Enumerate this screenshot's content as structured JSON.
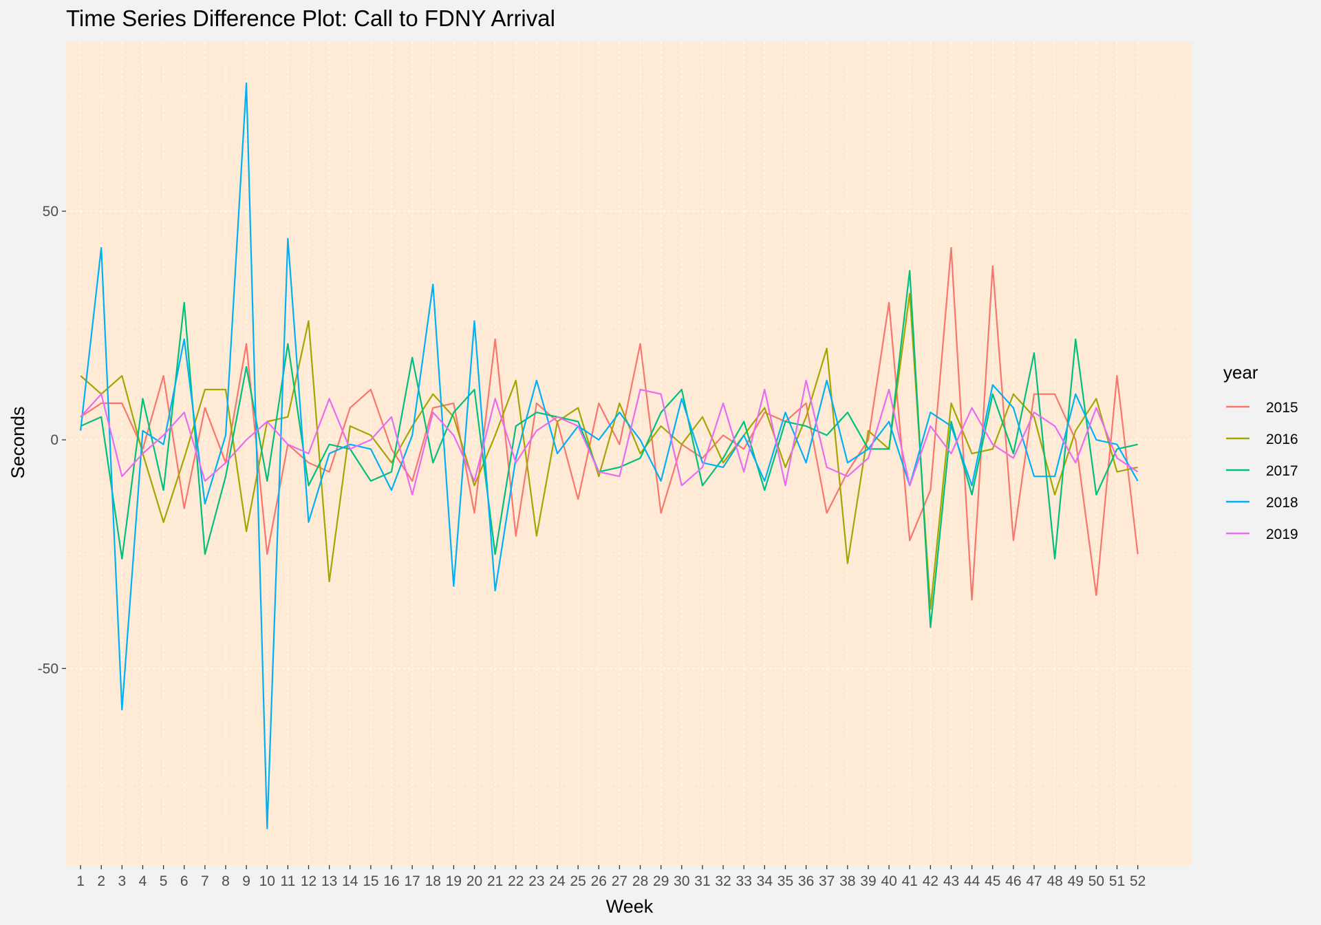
{
  "chart_data": {
    "type": "line",
    "title": "Time Series Difference Plot: Call to FDNY Arrival",
    "xlabel": "Week",
    "ylabel": "Seconds",
    "x": [
      1,
      2,
      3,
      4,
      5,
      6,
      7,
      8,
      9,
      10,
      11,
      12,
      13,
      14,
      15,
      16,
      17,
      18,
      19,
      20,
      21,
      22,
      23,
      24,
      25,
      26,
      27,
      28,
      29,
      30,
      31,
      32,
      33,
      34,
      35,
      36,
      37,
      38,
      39,
      40,
      41,
      42,
      43,
      44,
      45,
      46,
      47,
      48,
      49,
      50,
      51,
      52
    ],
    "x_tick_labels": [
      "1",
      "2",
      "3",
      "4",
      "5",
      "6",
      "7",
      "8",
      "9",
      "10",
      "11",
      "12",
      "13",
      "14",
      "15",
      "16",
      "17",
      "18",
      "19",
      "20",
      "21",
      "22",
      "23",
      "24",
      "25",
      "26",
      "27",
      "28",
      "29",
      "30",
      "31",
      "32",
      "33",
      "34",
      "35",
      "36",
      "37",
      "38",
      "39",
      "40",
      "41",
      "42",
      "43",
      "44",
      "45",
      "46",
      "47",
      "48",
      "49",
      "50",
      "51",
      "52"
    ],
    "ylim": [
      -93,
      87
    ],
    "y_ticks": [
      -50,
      0,
      50
    ],
    "y_tick_labels": [
      "-50",
      "0",
      "50"
    ],
    "grid": true,
    "panel_background": "#ffebd5",
    "background": "#f2f2f2",
    "legend": {
      "title": "year",
      "position": "right"
    },
    "series": [
      {
        "name": "2015",
        "color": "#F8766D",
        "values": [
          5,
          8,
          8,
          -2,
          14,
          -15,
          7,
          -5,
          21,
          -25,
          -1,
          -5,
          -7,
          7,
          11,
          -2,
          -9,
          7,
          8,
          -16,
          22,
          -21,
          8,
          4,
          -13,
          8,
          -1,
          21,
          -16,
          -1,
          -4,
          1,
          -2,
          6,
          4,
          8,
          -16,
          -7,
          0,
          30,
          -22,
          -11,
          42,
          -35,
          38,
          -22,
          10,
          10,
          0,
          -34,
          14,
          -25
        ]
      },
      {
        "name": "2016",
        "color": "#A3A500",
        "values": [
          14,
          10,
          14,
          -3,
          -18,
          -4,
          11,
          11,
          -20,
          4,
          5,
          26,
          -31,
          3,
          1,
          -5,
          3,
          10,
          5,
          -10,
          1,
          13,
          -21,
          4,
          7,
          -8,
          8,
          -3,
          3,
          -1,
          5,
          -5,
          1,
          7,
          -6,
          5,
          20,
          -27,
          2,
          -2,
          32,
          -37,
          8,
          -3,
          -2,
          10,
          5,
          -12,
          2,
          9,
          -7,
          -6
        ]
      },
      {
        "name": "2017",
        "color": "#00BF7D",
        "values": [
          3,
          5,
          -26,
          9,
          -11,
          30,
          -25,
          -8,
          16,
          -9,
          21,
          -10,
          -1,
          -2,
          -9,
          -7,
          18,
          -5,
          6,
          11,
          -25,
          3,
          6,
          5,
          4,
          -7,
          -6,
          -4,
          6,
          11,
          -10,
          -4,
          4,
          -11,
          4,
          3,
          1,
          6,
          -2,
          -2,
          37,
          -41,
          4,
          -12,
          10,
          -3,
          19,
          -26,
          22,
          -12,
          -2,
          -1
        ]
      },
      {
        "name": "2018",
        "color": "#00B0F6",
        "values": [
          2,
          42,
          -59,
          2,
          -1,
          22,
          -14,
          1,
          78,
          -85,
          44,
          -18,
          -3,
          -1,
          -2,
          -11,
          1,
          34,
          -32,
          26,
          -33,
          -4,
          13,
          -3,
          3,
          0,
          6,
          0,
          -9,
          9,
          -5,
          -6,
          1,
          -9,
          6,
          -5,
          13,
          -5,
          -2,
          4,
          -10,
          6,
          3,
          -10,
          12,
          7,
          -8,
          -8,
          10,
          0,
          -1,
          -9
        ]
      },
      {
        "name": "2019",
        "color": "#E76BF3",
        "values": [
          5,
          10,
          -8,
          -3,
          1,
          6,
          -9,
          -5,
          0,
          4,
          -1,
          -3,
          9,
          -2,
          0,
          5,
          -12,
          6,
          1,
          -9,
          9,
          -5,
          2,
          5,
          3,
          -7,
          -8,
          11,
          10,
          -10,
          -6,
          8,
          -7,
          11,
          -10,
          13,
          -6,
          -8,
          -4,
          11,
          -10,
          3,
          -3,
          7,
          -1,
          -4,
          6,
          3,
          -5,
          7,
          -4,
          -7
        ]
      }
    ]
  }
}
